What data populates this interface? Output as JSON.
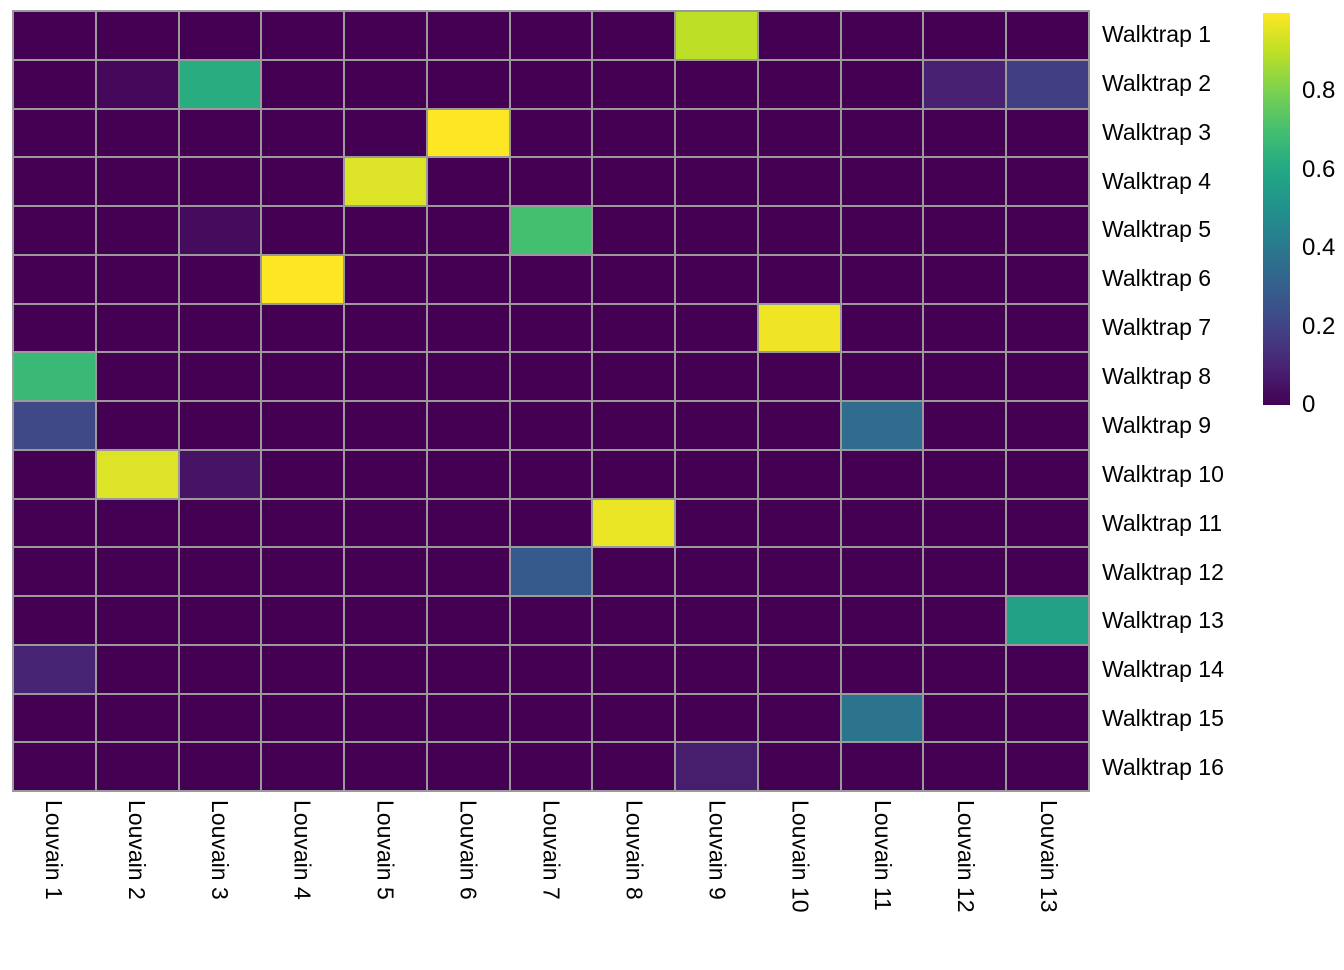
{
  "figure": {
    "background": "#ffffff",
    "grid_line_color": "#9a9a9a",
    "text_color": "#000000"
  },
  "chart_data": {
    "type": "heatmap",
    "title": "",
    "xlabel": "",
    "ylabel": "",
    "rows": [
      "Walktrap 1",
      "Walktrap 2",
      "Walktrap 3",
      "Walktrap 4",
      "Walktrap 5",
      "Walktrap 6",
      "Walktrap 7",
      "Walktrap 8",
      "Walktrap 9",
      "Walktrap 10",
      "Walktrap 11",
      "Walktrap 12",
      "Walktrap 13",
      "Walktrap 14",
      "Walktrap 15",
      "Walktrap 16"
    ],
    "columns": [
      "Louvain 1",
      "Louvain 2",
      "Louvain 3",
      "Louvain 4",
      "Louvain 5",
      "Louvain 6",
      "Louvain 7",
      "Louvain 8",
      "Louvain 9",
      "Louvain 10",
      "Louvain 11",
      "Louvain 12",
      "Louvain 13"
    ],
    "matrix": [
      [
        0,
        0,
        0,
        0,
        0,
        0,
        0,
        0,
        0.9,
        0,
        0,
        0,
        0
      ],
      [
        0,
        0.02,
        0.62,
        0,
        0,
        0,
        0,
        0,
        0,
        0,
        0,
        0.09,
        0.18
      ],
      [
        0,
        0,
        0,
        0,
        0,
        1.0,
        0,
        0,
        0,
        0,
        0,
        0,
        0
      ],
      [
        0,
        0,
        0,
        0,
        0.95,
        0,
        0,
        0,
        0,
        0,
        0,
        0,
        0
      ],
      [
        0,
        0,
        0.03,
        0,
        0,
        0,
        0.7,
        0,
        0,
        0,
        0,
        0,
        0
      ],
      [
        0,
        0,
        0,
        1.0,
        0,
        0,
        0,
        0,
        0,
        0,
        0,
        0,
        0
      ],
      [
        0,
        0,
        0,
        0,
        0,
        0,
        0,
        0,
        0,
        0.98,
        0,
        0,
        0
      ],
      [
        0.67,
        0,
        0,
        0,
        0,
        0,
        0,
        0,
        0,
        0,
        0,
        0,
        0
      ],
      [
        0.22,
        0,
        0,
        0,
        0,
        0,
        0,
        0,
        0,
        0,
        0.35,
        0,
        0
      ],
      [
        0,
        0.95,
        0.05,
        0,
        0,
        0,
        0,
        0,
        0,
        0,
        0,
        0,
        0
      ],
      [
        0,
        0,
        0,
        0,
        0,
        0,
        0,
        0.97,
        0,
        0,
        0,
        0,
        0
      ],
      [
        0,
        0,
        0,
        0,
        0,
        0,
        0.28,
        0,
        0,
        0,
        0,
        0,
        0
      ],
      [
        0,
        0,
        0,
        0,
        0,
        0,
        0,
        0,
        0,
        0,
        0,
        0,
        0.57
      ],
      [
        0.1,
        0,
        0,
        0,
        0,
        0,
        0,
        0,
        0,
        0,
        0,
        0,
        0
      ],
      [
        0,
        0,
        0,
        0,
        0,
        0,
        0,
        0,
        0,
        0,
        0.38,
        0,
        0
      ],
      [
        0,
        0,
        0,
        0,
        0,
        0,
        0,
        0,
        0.08,
        0,
        0,
        0,
        0
      ]
    ],
    "value_domain": [
      0,
      1
    ],
    "grid": true,
    "legend_position": "right",
    "colorbar": {
      "tick_labels": [
        "0.8",
        "0.6",
        "0.4",
        "0.2",
        "0"
      ],
      "tick_values": [
        0.8,
        0.6,
        0.4,
        0.2,
        0
      ]
    },
    "palette": {
      "name": "viridis",
      "stops": [
        "#440154",
        "#482475",
        "#414487",
        "#355f8d",
        "#2a788e",
        "#21918c",
        "#22a884",
        "#44bf70",
        "#7ad151",
        "#bddf26",
        "#fde725"
      ]
    }
  }
}
